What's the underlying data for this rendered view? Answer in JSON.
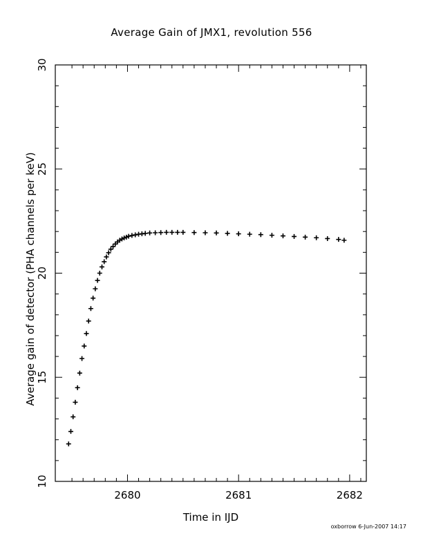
{
  "chart_data": {
    "type": "scatter",
    "marker": "plus",
    "title": "Average Gain of JMX1, revolution 556",
    "xlabel": "Time in IJD",
    "ylabel": "Average gain of detector (PHA channels per keV)",
    "xlim": [
      2679.35,
      2682.15
    ],
    "ylim": [
      10,
      30
    ],
    "xticks": [
      2680,
      2681,
      2682
    ],
    "yticks": [
      10,
      15,
      20,
      25,
      30
    ],
    "xtick_labels": [
      "2680",
      "2681",
      "2682"
    ],
    "ytick_labels": [
      "10",
      "15",
      "20",
      "25",
      "30"
    ],
    "grid": false,
    "series": [
      {
        "x": [
          2679.47,
          2679.49,
          2679.51,
          2679.53,
          2679.55,
          2679.57,
          2679.59,
          2679.61,
          2679.63,
          2679.65,
          2679.67,
          2679.69,
          2679.71,
          2679.73,
          2679.75,
          2679.77,
          2679.79,
          2679.81,
          2679.83,
          2679.85,
          2679.87,
          2679.89,
          2679.91,
          2679.93,
          2679.95,
          2679.97,
          2679.99,
          2680.01,
          2680.04,
          2680.07,
          2680.1,
          2680.13,
          2680.16,
          2680.2,
          2680.25,
          2680.3,
          2680.35,
          2680.4,
          2680.45,
          2680.5,
          2680.6,
          2680.7,
          2680.8,
          2680.9,
          2681.0,
          2681.1,
          2681.2,
          2681.3,
          2681.4,
          2681.5,
          2681.6,
          2681.7,
          2681.8,
          2681.9,
          2681.95
        ],
        "y": [
          11.8,
          12.4,
          13.1,
          13.8,
          14.5,
          15.2,
          15.9,
          16.5,
          17.1,
          17.7,
          18.3,
          18.8,
          19.25,
          19.65,
          20.0,
          20.3,
          20.55,
          20.78,
          20.98,
          21.15,
          21.28,
          21.4,
          21.5,
          21.58,
          21.64,
          21.69,
          21.73,
          21.77,
          21.81,
          21.84,
          21.87,
          21.89,
          21.91,
          21.93,
          21.94,
          21.95,
          21.96,
          21.96,
          21.96,
          21.96,
          21.95,
          21.94,
          21.93,
          21.91,
          21.89,
          21.87,
          21.85,
          21.82,
          21.79,
          21.76,
          21.73,
          21.7,
          21.66,
          21.62,
          21.58
        ]
      }
    ]
  },
  "footer": {
    "credit": "oxborrow  6-Jun-2007 14:17"
  }
}
